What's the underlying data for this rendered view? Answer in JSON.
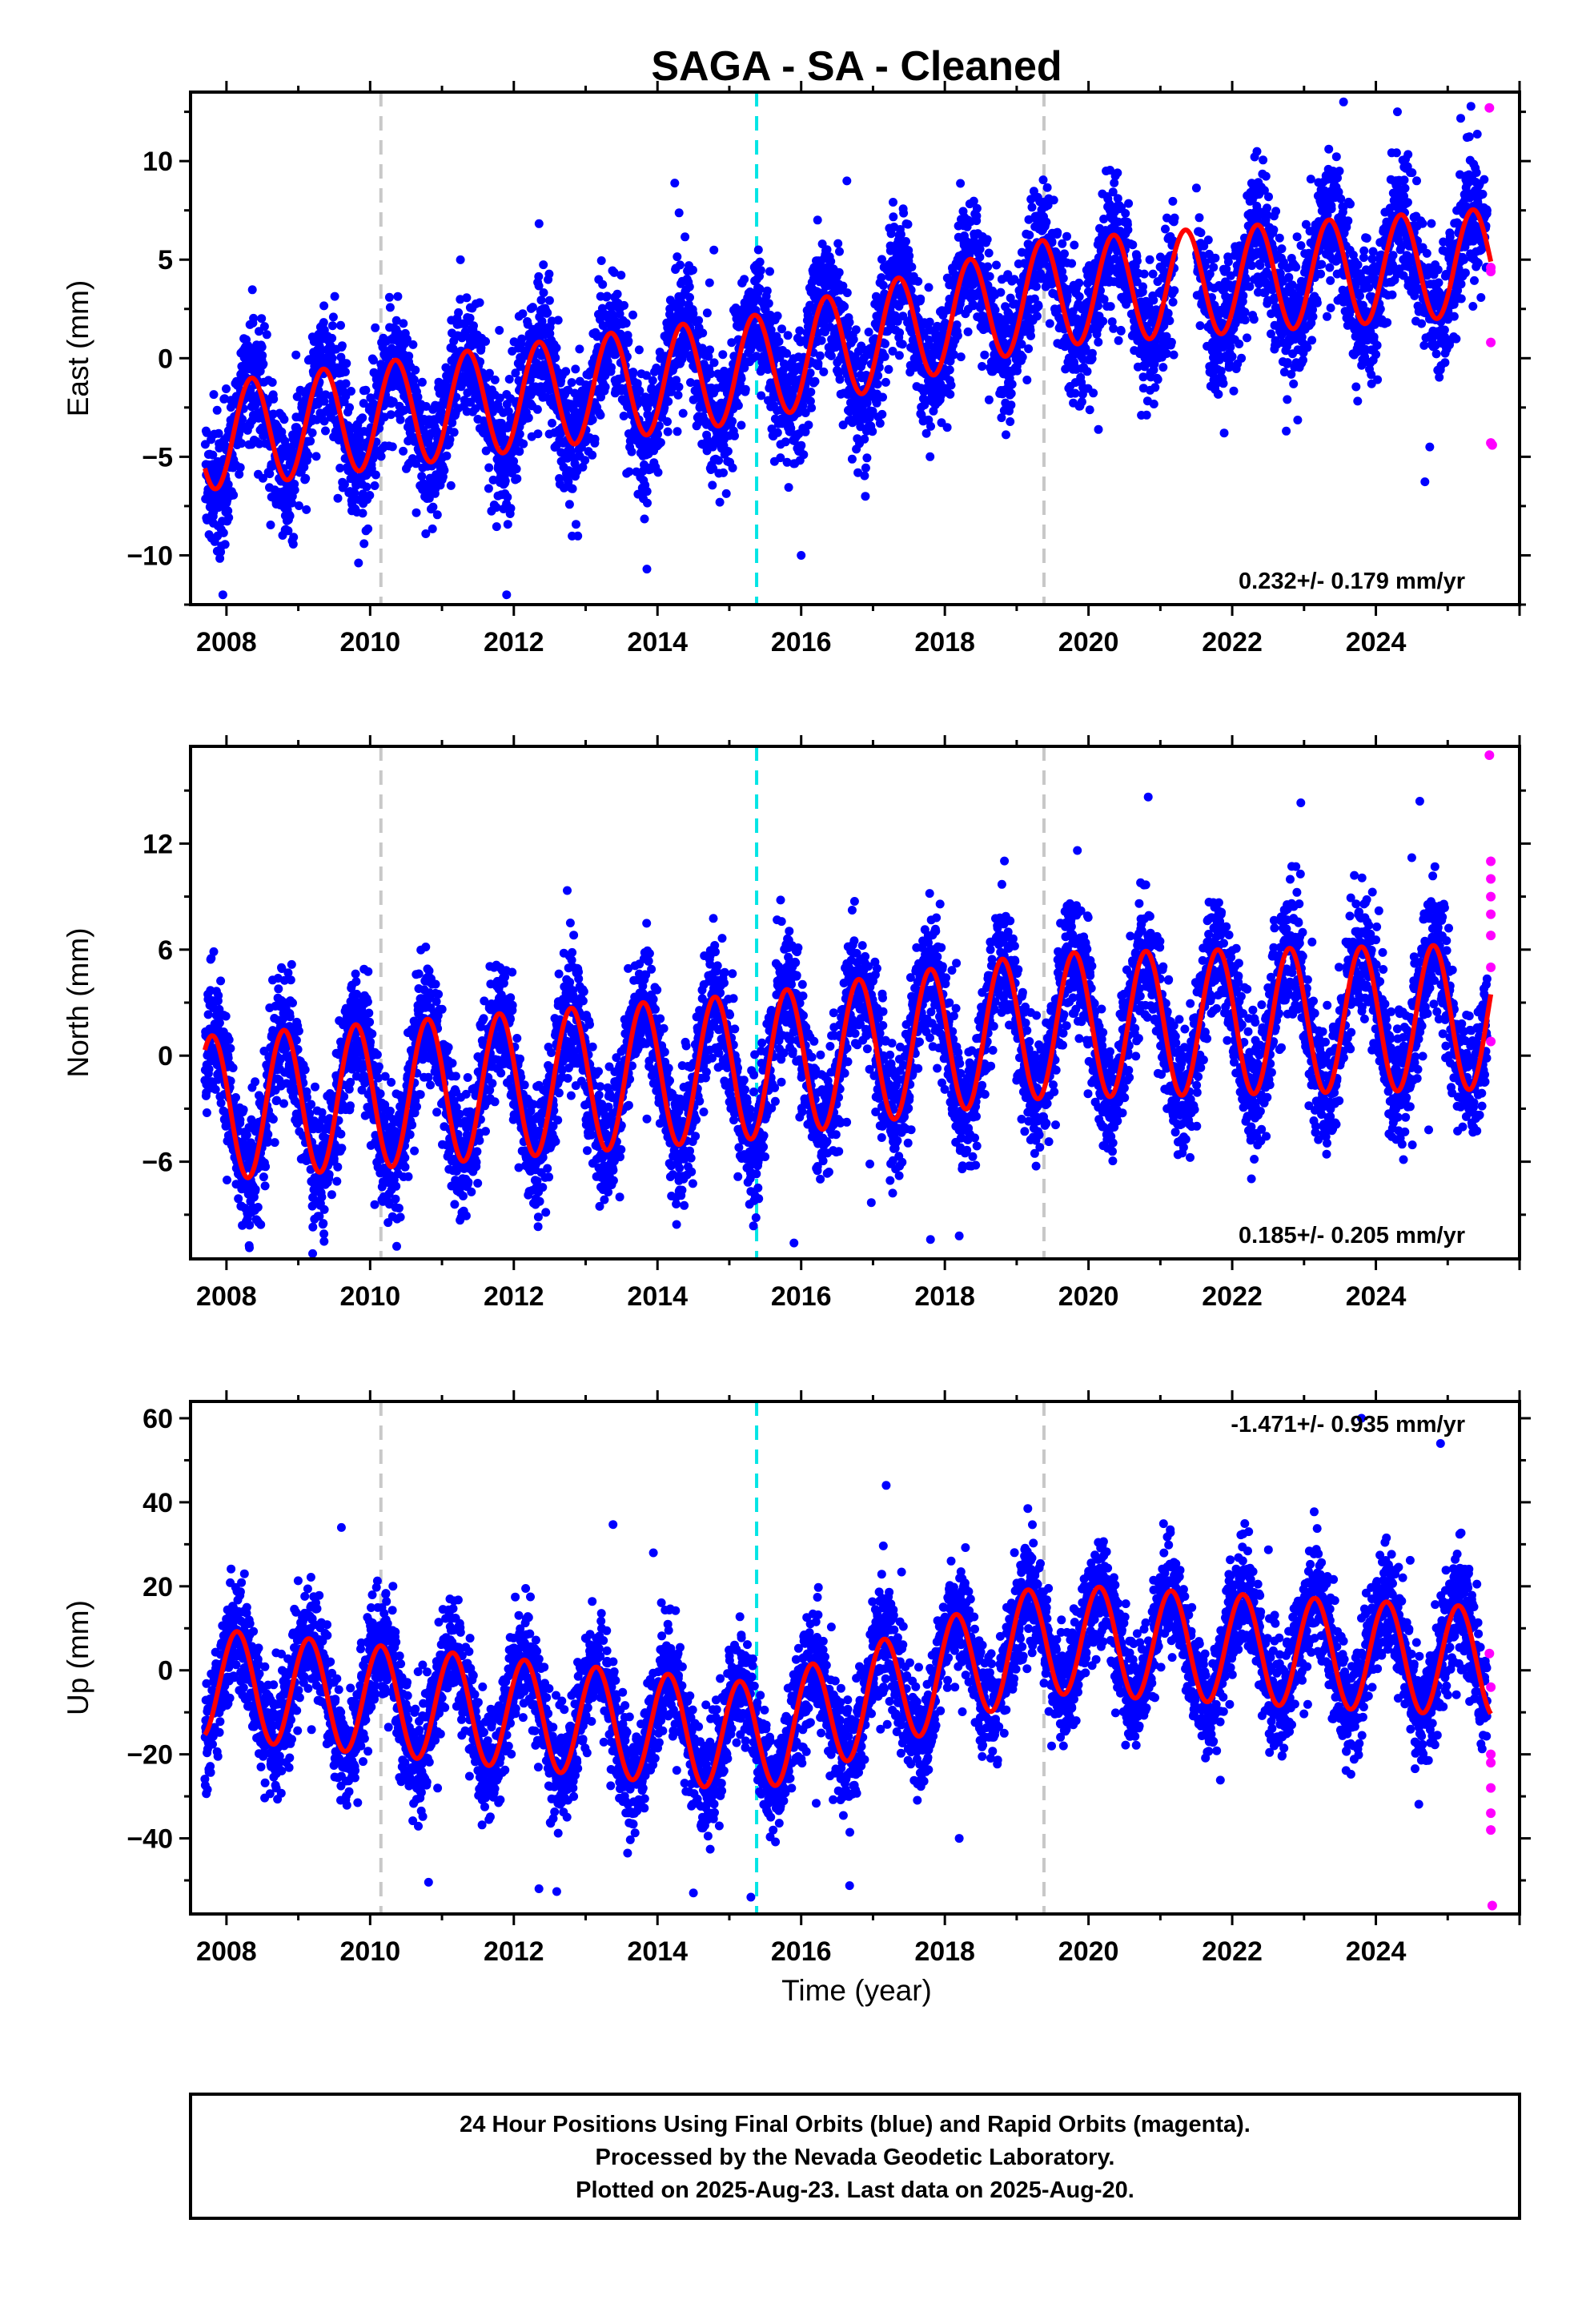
{
  "title": "SAGA  - SA - Cleaned",
  "xlabel": "Time (year)",
  "colors": {
    "final": "#0000ff",
    "rapid": "#ff00ff",
    "model": "#ff0000",
    "antenna": "#c8c8c8",
    "equipment": "#00e5e5"
  },
  "chart_data": [
    {
      "type": "scatter",
      "ylabel": "East (mm)",
      "xlim": [
        2007.5,
        2026.0
      ],
      "ylim": [
        -12.5,
        13.5
      ],
      "yticks": [
        -10,
        -5,
        0,
        5,
        10
      ],
      "xticks": [
        2008,
        2010,
        2012,
        2014,
        2016,
        2018,
        2020,
        2022,
        2024
      ],
      "rate_text": "0.232+/- 0.179 mm/yr",
      "rate_position": "bottom-right",
      "offsets": [
        2010.15,
        2015.38,
        2019.38
      ],
      "series": [
        {
          "name": "Final Orbits (blue)",
          "start": 2007.7,
          "end": 2025.55,
          "epochs": [
            2007.7,
            2015.38,
            2019.38,
            2025.55
          ],
          "levels": [
            -4.0,
            -0.5,
            3.3,
            4.9
          ],
          "amplitude": 2.7,
          "phase": 0.9,
          "scatter": 1.6,
          "outliers": [
            [
              2007.95,
              -12.0
            ],
            [
              2011.9,
              -12.0
            ],
            [
              2016.0,
              -10.0
            ],
            [
              2023.55,
              13.0
            ],
            [
              2024.3,
              12.5
            ],
            [
              2024.75,
              -4.5
            ]
          ]
        },
        {
          "name": "Rapid Orbits (magenta)",
          "points": [
            [
              2025.58,
              12.7
            ],
            [
              2025.6,
              4.4
            ],
            [
              2025.6,
              4.6
            ],
            [
              2025.6,
              0.8
            ],
            [
              2025.6,
              -4.3
            ],
            [
              2025.62,
              -4.4
            ]
          ]
        }
      ],
      "model": {
        "start": 2007.7,
        "end": 2025.6,
        "epochs": [
          2007.7,
          2015.38,
          2019.38,
          2025.6
        ],
        "levels": [
          -4.0,
          -0.5,
          3.3,
          4.9
        ],
        "amplitude": 2.7,
        "phase": 0.9
      }
    },
    {
      "type": "scatter",
      "ylabel": "North (mm)",
      "xlim": [
        2007.5,
        2026.0
      ],
      "ylim": [
        -11.5,
        17.5
      ],
      "yticks": [
        -6,
        0,
        6,
        12
      ],
      "xticks": [
        2008,
        2010,
        2012,
        2014,
        2016,
        2018,
        2020,
        2022,
        2024
      ],
      "rate_text": "0.185+/- 0.205 mm/yr",
      "rate_position": "bottom-right",
      "offsets": [
        2010.15,
        2015.38,
        2019.38
      ],
      "series": [
        {
          "name": "Final Orbits (blue)",
          "start": 2007.7,
          "end": 2025.55,
          "epochs": [
            2007.7,
            2015.38,
            2019.38,
            2025.55
          ],
          "levels": [
            -3.0,
            -0.6,
            1.7,
            2.2
          ],
          "amplitude": 4.1,
          "phase": 0.45,
          "scatter": 1.8,
          "outliers": [
            [
              2009.2,
              -11.2
            ],
            [
              2015.9,
              -10.6
            ],
            [
              2017.8,
              -10.4
            ],
            [
              2018.2,
              -10.2
            ],
            [
              2023.7,
              10.2
            ],
            [
              2024.5,
              11.2
            ]
          ]
        },
        {
          "name": "Rapid Orbits (magenta)",
          "points": [
            [
              2025.58,
              17.0
            ],
            [
              2025.6,
              11.0
            ],
            [
              2025.6,
              10.0
            ],
            [
              2025.6,
              9.0
            ],
            [
              2025.6,
              8.0
            ],
            [
              2025.6,
              6.8
            ],
            [
              2025.6,
              5.0
            ],
            [
              2025.6,
              0.8
            ]
          ]
        }
      ],
      "model": {
        "start": 2007.7,
        "end": 2025.6,
        "epochs": [
          2007.7,
          2015.38,
          2019.38,
          2025.6
        ],
        "levels": [
          -3.0,
          -0.6,
          1.7,
          2.2
        ],
        "amplitude": 4.1,
        "phase": 0.45
      }
    },
    {
      "type": "scatter",
      "ylabel": "Up (mm)",
      "xlim": [
        2007.5,
        2026.0
      ],
      "ylim": [
        -58.0,
        64.0
      ],
      "yticks": [
        -40,
        -20,
        0,
        20,
        40,
        60
      ],
      "xticks": [
        2008,
        2010,
        2012,
        2014,
        2016,
        2018,
        2020,
        2022,
        2024
      ],
      "rate_text": "-1.471+/- 0.935 mm/yr",
      "rate_position": "top-right",
      "offsets": [
        2010.15,
        2015.38,
        2019.38
      ],
      "series": [
        {
          "name": "Final Orbits (blue)",
          "start": 2007.7,
          "end": 2025.55,
          "epochs": [
            2007.7,
            2015.38,
            2019.38,
            2025.55
          ],
          "levels": [
            -3.0,
            -16.0,
            7.5,
            2.0
          ],
          "amplitude": 13.0,
          "phase": 0.1,
          "scatter": 6.5,
          "outliers": [
            [
              2009.6,
              34.0
            ],
            [
              2012.35,
              -52.0
            ],
            [
              2014.5,
              -53.0
            ],
            [
              2015.3,
              -54.0
            ],
            [
              2018.2,
              -40.0
            ],
            [
              2023.8,
              60.0
            ],
            [
              2024.9,
              54.0
            ]
          ]
        },
        {
          "name": "Rapid Orbits (magenta)",
          "points": [
            [
              2025.58,
              4.0
            ],
            [
              2025.6,
              -4.0
            ],
            [
              2025.6,
              -20.0
            ],
            [
              2025.6,
              -22.0
            ],
            [
              2025.6,
              -28.0
            ],
            [
              2025.6,
              -34.0
            ],
            [
              2025.6,
              -38.0
            ],
            [
              2025.62,
              -56.0
            ]
          ]
        }
      ],
      "model": {
        "start": 2007.7,
        "end": 2025.6,
        "epochs": [
          2007.7,
          2015.38,
          2019.38,
          2025.6
        ],
        "levels": [
          -3.0,
          -16.0,
          7.5,
          2.0
        ],
        "amplitude": 13.0,
        "phase": 0.1
      }
    }
  ],
  "footer": {
    "line1": "24 Hour Positions Using Final Orbits (blue) and Rapid Orbits (magenta).",
    "line2": "Processed by the Nevada Geodetic Laboratory.",
    "line3": "Plotted on 2025-Aug-23. Last data on 2025-Aug-20."
  }
}
